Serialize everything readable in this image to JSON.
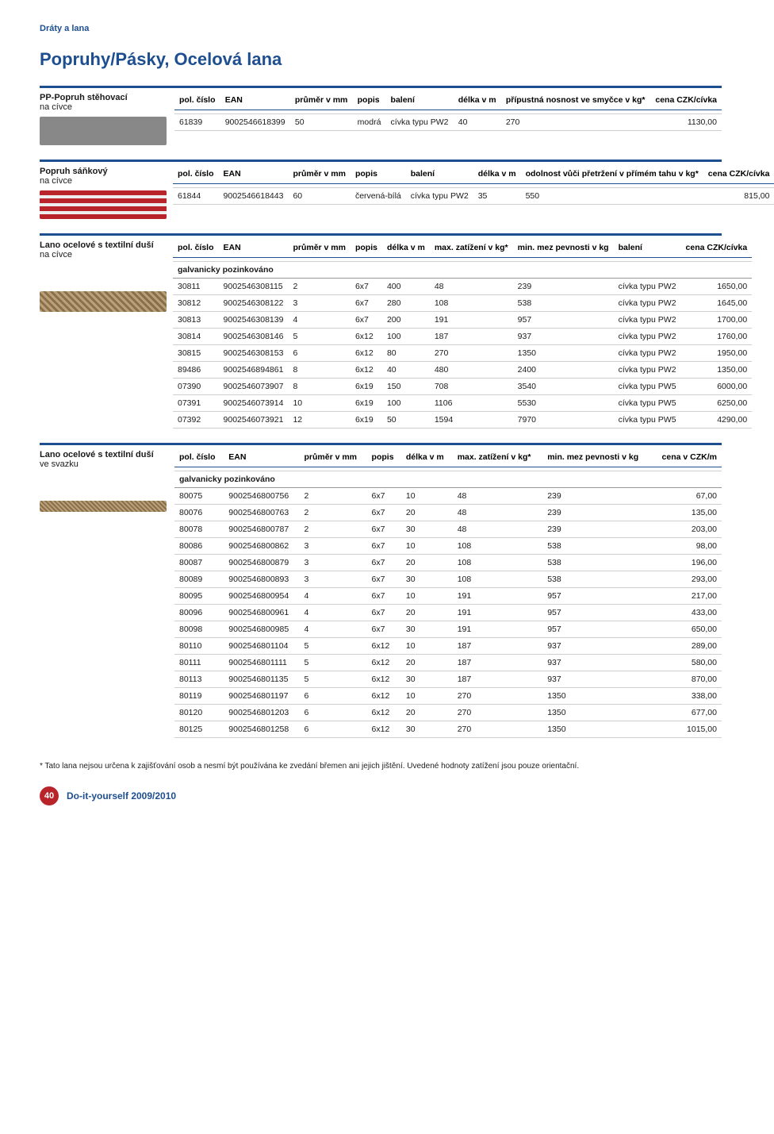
{
  "page": {
    "category": "Dráty a lana",
    "title": "Popruhy/Pásky, Ocelová lana",
    "footnote": "* Tato lana nejsou určena k zajišťování osob a nesmí být používána ke zvedání břemen ani jejich jištění. Uvedené hodnoty zatížení jsou pouze orientační.",
    "page_number": "40",
    "footer_text": "Do-it-yourself 2009/2010"
  },
  "colors": {
    "brand_blue": "#1d4e8f",
    "accent_red": "#b8242a",
    "rule_grey": "#cfcfcf"
  },
  "section1": {
    "label_line1": "PP-Popruh stěhovací",
    "label_line2": "na cívce",
    "headers": [
      "pol. číslo",
      "EAN",
      "průměr v mm",
      "popis",
      "balení",
      "délka v m",
      "přípustná nosnost ve smyčce v kg*",
      "cena CZK/cívka"
    ],
    "rows": [
      [
        "61839",
        "9002546618399",
        "50",
        "modrá",
        "cívka typu PW2",
        "40",
        "270",
        "1130,00"
      ]
    ]
  },
  "section2": {
    "label_line1": "Popruh sáňkový",
    "label_line2": "na cívce",
    "headers": [
      "pol. číslo",
      "EAN",
      "průměr v mm",
      "popis",
      "balení",
      "délka v m",
      "odolnost vůči přetržení v přímém tahu v kg*",
      "cena CZK/cívka"
    ],
    "rows": [
      [
        "61844",
        "9002546618443",
        "60",
        "červená-bílá",
        "cívka typu PW2",
        "35",
        "550",
        "815,00"
      ]
    ]
  },
  "section3": {
    "label_line1": "Lano ocelové s textilní duší",
    "label_line2": "na cívce",
    "headers": [
      "pol. číslo",
      "EAN",
      "průměr v mm",
      "popis",
      "délka v m",
      "max. zatížení v kg*",
      "min. mez pevnosti v kg",
      "balení",
      "cena CZK/cívka"
    ],
    "subheader": "galvanicky pozinkováno",
    "rows": [
      [
        "30811",
        "9002546308115",
        "2",
        "6x7",
        "400",
        "48",
        "239",
        "cívka typu PW2",
        "1650,00"
      ],
      [
        "30812",
        "9002546308122",
        "3",
        "6x7",
        "280",
        "108",
        "538",
        "cívka typu PW2",
        "1645,00"
      ],
      [
        "30813",
        "9002546308139",
        "4",
        "6x7",
        "200",
        "191",
        "957",
        "cívka typu PW2",
        "1700,00"
      ],
      [
        "30814",
        "9002546308146",
        "5",
        "6x12",
        "100",
        "187",
        "937",
        "cívka typu PW2",
        "1760,00"
      ],
      [
        "30815",
        "9002546308153",
        "6",
        "6x12",
        "80",
        "270",
        "1350",
        "cívka typu PW2",
        "1950,00"
      ],
      [
        "89486",
        "9002546894861",
        "8",
        "6x12",
        "40",
        "480",
        "2400",
        "cívka typu PW2",
        "1350,00"
      ],
      [
        "07390",
        "9002546073907",
        "8",
        "6x19",
        "150",
        "708",
        "3540",
        "cívka typu PW5",
        "6000,00"
      ],
      [
        "07391",
        "9002546073914",
        "10",
        "6x19",
        "100",
        "1106",
        "5530",
        "cívka typu PW5",
        "6250,00"
      ],
      [
        "07392",
        "9002546073921",
        "12",
        "6x19",
        "50",
        "1594",
        "7970",
        "cívka typu PW5",
        "4290,00"
      ]
    ]
  },
  "section4": {
    "label_line1": "Lano ocelové s textilní duší",
    "label_line2": "ve svazku",
    "headers": [
      "pol. číslo",
      "EAN",
      "průměr v mm",
      "popis",
      "délka v m",
      "max. zatížení v kg*",
      "min. mez pevnosti v kg",
      "cena v CZK/m"
    ],
    "subheader": "galvanicky pozinkováno",
    "rows": [
      [
        "80075",
        "9002546800756",
        "2",
        "6x7",
        "10",
        "48",
        "239",
        "67,00"
      ],
      [
        "80076",
        "9002546800763",
        "2",
        "6x7",
        "20",
        "48",
        "239",
        "135,00"
      ],
      [
        "80078",
        "9002546800787",
        "2",
        "6x7",
        "30",
        "48",
        "239",
        "203,00"
      ],
      [
        "80086",
        "9002546800862",
        "3",
        "6x7",
        "10",
        "108",
        "538",
        "98,00"
      ],
      [
        "80087",
        "9002546800879",
        "3",
        "6x7",
        "20",
        "108",
        "538",
        "196,00"
      ],
      [
        "80089",
        "9002546800893",
        "3",
        "6x7",
        "30",
        "108",
        "538",
        "293,00"
      ],
      [
        "80095",
        "9002546800954",
        "4",
        "6x7",
        "10",
        "191",
        "957",
        "217,00"
      ],
      [
        "80096",
        "9002546800961",
        "4",
        "6x7",
        "20",
        "191",
        "957",
        "433,00"
      ],
      [
        "80098",
        "9002546800985",
        "4",
        "6x7",
        "30",
        "191",
        "957",
        "650,00"
      ],
      [
        "80110",
        "9002546801104",
        "5",
        "6x12",
        "10",
        "187",
        "937",
        "289,00"
      ],
      [
        "80111",
        "9002546801111",
        "5",
        "6x12",
        "20",
        "187",
        "937",
        "580,00"
      ],
      [
        "80113",
        "9002546801135",
        "5",
        "6x12",
        "30",
        "187",
        "937",
        "870,00"
      ],
      [
        "80119",
        "9002546801197",
        "6",
        "6x12",
        "10",
        "270",
        "1350",
        "338,00"
      ],
      [
        "80120",
        "9002546801203",
        "6",
        "6x12",
        "20",
        "270",
        "1350",
        "677,00"
      ],
      [
        "80125",
        "9002546801258",
        "6",
        "6x12",
        "30",
        "270",
        "1350",
        "1015,00"
      ]
    ]
  }
}
